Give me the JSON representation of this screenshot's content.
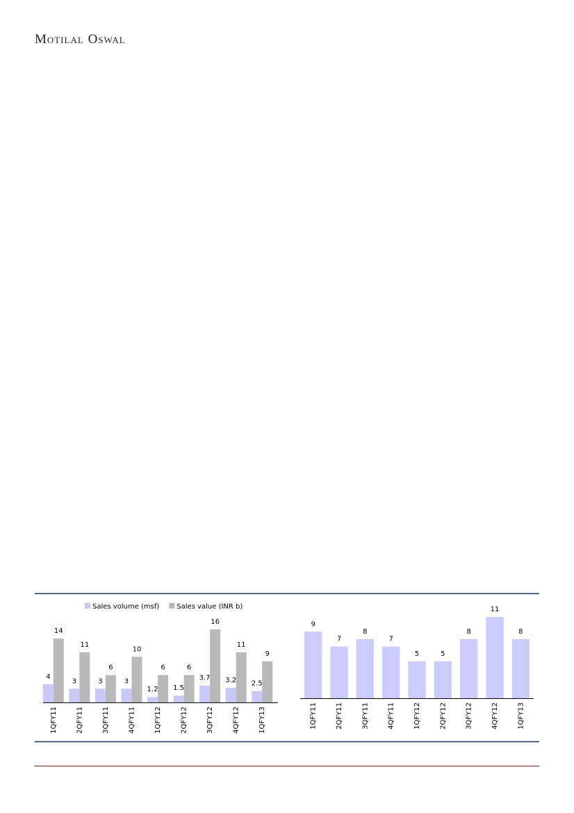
{
  "header": {
    "title": "Motilal Oswal"
  },
  "chart_data": [
    {
      "type": "bar",
      "categories": [
        "1QFY11",
        "2QFY11",
        "3QFY11",
        "4QFY11",
        "1QFY12",
        "2QFY12",
        "3QFY12",
        "4QFY12",
        "1QFY13"
      ],
      "series": [
        {
          "name": "Sales volume (msf)",
          "color": "#c9c9f7",
          "values": [
            4,
            3,
            3,
            3,
            1.2,
            1.5,
            3.7,
            3.2,
            2.5
          ]
        },
        {
          "name": "Sales value (INR b)",
          "color": "#b9b9b9",
          "values": [
            14,
            11,
            6,
            10,
            6,
            6,
            16,
            11,
            9
          ]
        }
      ]
    },
    {
      "type": "bar",
      "categories": [
        "1QFY11",
        "2QFY11",
        "3QFY11",
        "4QFY11",
        "1QFY12",
        "2QFY12",
        "3QFY12",
        "4QFY12",
        "1QFY13"
      ],
      "color": "#ccccff",
      "values": [
        9,
        7,
        8,
        7,
        5,
        5,
        8,
        11,
        8
      ]
    }
  ]
}
